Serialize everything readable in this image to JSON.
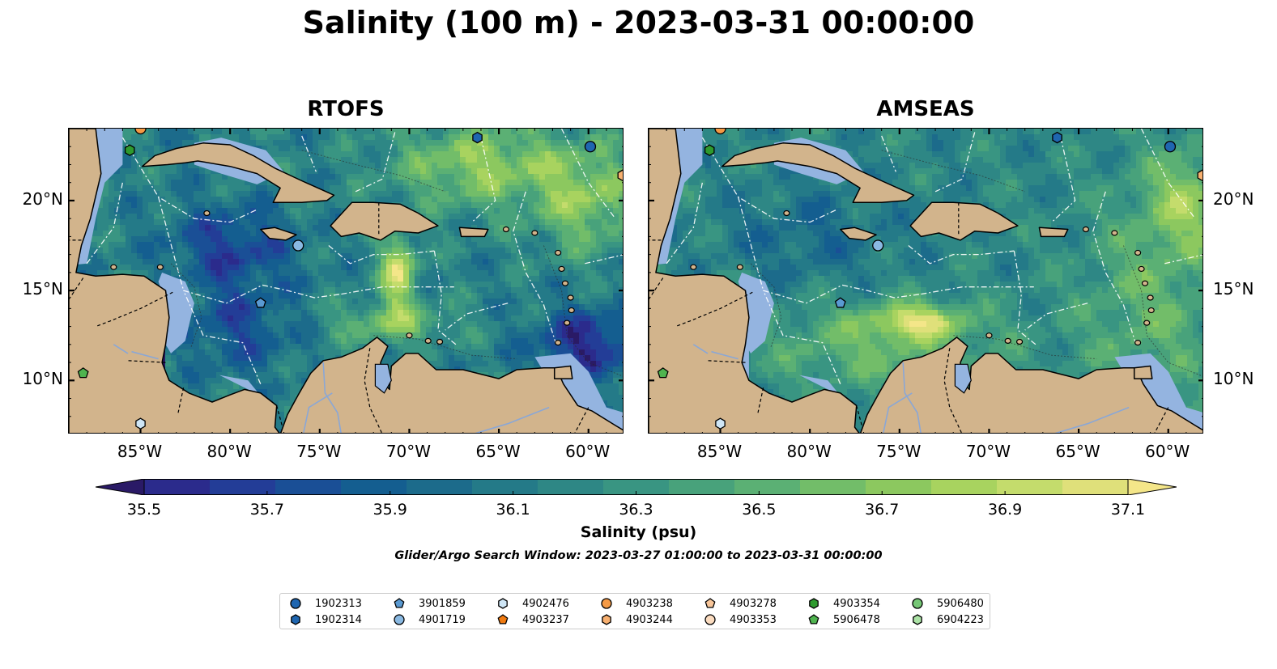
{
  "title": "Salinity (100 m) - 2023-03-31 00:00:00",
  "panels": [
    {
      "title": "RTOFS",
      "model": "rtofs"
    },
    {
      "title": "AMSEAS",
      "model": "amseas"
    }
  ],
  "map_extent": {
    "lon_min": -89,
    "lon_max": -58,
    "lat_min": 7,
    "lat_max": 24
  },
  "lon_ticks": [
    {
      "value": -85,
      "label": "85°W"
    },
    {
      "value": -80,
      "label": "80°W"
    },
    {
      "value": -75,
      "label": "75°W"
    },
    {
      "value": -70,
      "label": "70°W"
    },
    {
      "value": -65,
      "label": "65°W"
    },
    {
      "value": -60,
      "label": "60°W"
    }
  ],
  "lat_ticks": [
    {
      "value": 20,
      "label": "20°N"
    },
    {
      "value": 15,
      "label": "15°N"
    },
    {
      "value": 10,
      "label": "10°N"
    }
  ],
  "colorbar": {
    "min": 35.4,
    "max": 37.2,
    "ticks": [
      "35.5",
      "35.7",
      "35.9",
      "36.1",
      "36.3",
      "36.5",
      "36.7",
      "36.9",
      "37.1"
    ],
    "tick_values": [
      35.5,
      35.7,
      35.9,
      36.1,
      36.3,
      36.5,
      36.7,
      36.9,
      37.1
    ],
    "label": "Salinity (psu)",
    "colors": [
      "#2a1a66",
      "#2b2b8c",
      "#233d97",
      "#1a4f96",
      "#145e90",
      "#1c6b8b",
      "#247a88",
      "#2e8785",
      "#399582",
      "#48a27b",
      "#5bb074",
      "#72bd69",
      "#8cc85f",
      "#a8d35f",
      "#c4dc6c",
      "#dfe07a",
      "#f4e689"
    ],
    "extend": "both"
  },
  "search_window": "Glider/Argo Search Window: 2023-03-27 01:00:00 to 2023-03-31 00:00:00",
  "colors": {
    "land": "#d2b48c",
    "shelf": "#94b4e0"
  },
  "floats": [
    {
      "id": "1902313",
      "marker": "circle",
      "color": "#1f66b0",
      "lon": -59.9,
      "lat": 23.0
    },
    {
      "id": "1902314",
      "marker": "hexagon",
      "color": "#1f66b0",
      "lon": -66.2,
      "lat": 23.5
    },
    {
      "id": "3901859",
      "marker": "pentagon",
      "color": "#5a9ad2",
      "lon": -78.3,
      "lat": 14.3
    },
    {
      "id": "4901719",
      "marker": "circle",
      "color": "#8ab9e2",
      "lon": -76.2,
      "lat": 17.5
    },
    {
      "id": "4902476",
      "marker": "hexagon",
      "color": "#cfe6f6",
      "lon": -85.0,
      "lat": 7.6
    },
    {
      "id": "4903237",
      "marker": "pentagon",
      "color": "#f07a10",
      "lon": null,
      "lat": null
    },
    {
      "id": "4903238",
      "marker": "circle",
      "color": "#f59a45",
      "lon": -85.0,
      "lat": 24.0
    },
    {
      "id": "4903244",
      "marker": "hexagon",
      "color": "#f8b070",
      "lon": -58.1,
      "lat": 21.4
    },
    {
      "id": "4903278",
      "marker": "pentagon",
      "color": "#f8c69a",
      "lon": null,
      "lat": null
    },
    {
      "id": "4903353",
      "marker": "circle",
      "color": "#fbdcc0",
      "lon": null,
      "lat": null
    },
    {
      "id": "4903354",
      "marker": "hexagon",
      "color": "#2e9a2e",
      "lon": -85.6,
      "lat": 22.8
    },
    {
      "id": "5906478",
      "marker": "pentagon",
      "color": "#4fb44f",
      "lon": -88.2,
      "lat": 10.4
    },
    {
      "id": "5906480",
      "marker": "circle",
      "color": "#76c776",
      "lon": null,
      "lat": null
    },
    {
      "id": "6904223",
      "marker": "hexagon",
      "color": "#ace3a6",
      "lon": null,
      "lat": null
    }
  ]
}
